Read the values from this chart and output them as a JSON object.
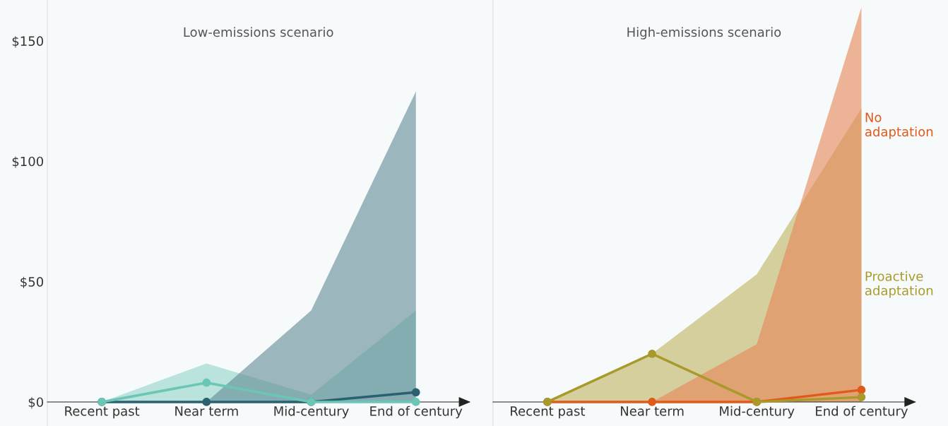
{
  "chart_data": [
    {
      "type": "line",
      "title": "Low-emissions scenario",
      "categories": [
        "Recent past",
        "Near term",
        "Mid-century",
        "End of century"
      ],
      "ylim": [
        -10,
        167
      ],
      "yticks": [
        {
          "value": 0,
          "label": "$0"
        },
        {
          "value": 50,
          "label": "$50"
        },
        {
          "value": 100,
          "label": "$100"
        },
        {
          "value": 150,
          "label": "$150"
        }
      ],
      "marker": "circle",
      "grid": false,
      "series": [
        {
          "color": "#6cc6b6",
          "values": [
            0,
            8,
            0,
            0
          ],
          "lower": [
            0,
            0,
            0,
            0
          ],
          "upper": [
            0,
            16,
            3,
            38
          ]
        },
        {
          "color": "#2b6070",
          "values": [
            0,
            0,
            0,
            4
          ],
          "lower": [
            null,
            0,
            0,
            0
          ],
          "upper": [
            null,
            0,
            38,
            129
          ]
        }
      ]
    },
    {
      "type": "line",
      "title": "High-emissions scenario",
      "categories": [
        "Recent past",
        "Near term",
        "Mid-century",
        "End of century"
      ],
      "ylim": [
        -10,
        167
      ],
      "tick_labels": "x",
      "marker": "circle",
      "grid": false,
      "series": [
        {
          "name": "Proactive adaptation",
          "color": "#a8992a",
          "values": [
            0,
            20,
            0,
            2
          ],
          "lower": [
            0,
            0,
            0,
            0
          ],
          "upper": [
            0,
            20,
            53,
            122
          ]
        },
        {
          "name": "No adaptation",
          "color": "#e05a1c",
          "values": [
            0,
            0,
            0,
            5
          ],
          "lower": [
            null,
            0,
            0,
            0
          ],
          "upper": [
            null,
            0,
            24,
            164
          ]
        }
      ]
    }
  ]
}
